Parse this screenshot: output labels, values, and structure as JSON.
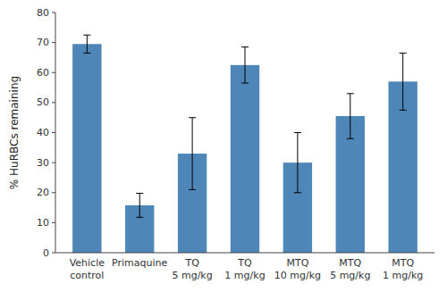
{
  "chart_data": {
    "type": "bar",
    "categories": [
      "Vehicle\ncontrol",
      "Primaquine",
      "TQ\n5 mg/kg",
      "TQ\n1 mg/kg",
      "MTQ\n10 mg/kg",
      "MTQ\n5 mg/kg",
      "MTQ\n1 mg/kg"
    ],
    "values": [
      69.5,
      15.8,
      33.0,
      62.5,
      30.0,
      45.5,
      57.0
    ],
    "errors": [
      3.0,
      4.0,
      12.0,
      6.0,
      10.0,
      7.5,
      9.5
    ],
    "color": "#4f86b8",
    "y_label": "% HuRBCs remaining",
    "ylim": [
      0,
      80
    ],
    "yticks": [
      0,
      10,
      20,
      30,
      40,
      50,
      60,
      70,
      80
    ],
    "grid": false
  }
}
